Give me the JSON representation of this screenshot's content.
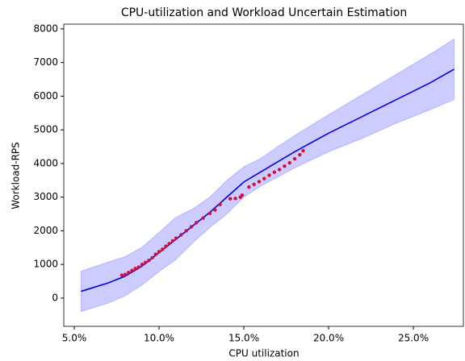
{
  "chart_data": {
    "type": "scatter",
    "title": "CPU-utilization and Workload Uncertain Estimation",
    "x_label": "CPU utilization",
    "y_label": "Workload-RPS",
    "xlim": [
      4.38,
      27.95
    ],
    "ylim": [
      -840,
      8140
    ],
    "xticks": [
      {
        "value": 5,
        "label": "5.0%"
      },
      {
        "value": 10,
        "label": "10.0%"
      },
      {
        "value": 15,
        "label": "15.0%"
      },
      {
        "value": 20,
        "label": "20.0%"
      },
      {
        "value": 25,
        "label": "25.0%"
      }
    ],
    "yticks": [
      0,
      1000,
      2000,
      3000,
      4000,
      5000,
      6000,
      7000,
      8000
    ],
    "band": {
      "color": "#0000ff",
      "alpha": 0.2,
      "x": [
        5.4,
        7,
        8,
        9,
        10,
        11,
        12,
        13,
        14,
        15,
        16,
        17,
        18,
        20,
        22,
        24,
        26,
        27.4
      ],
      "upper": [
        800,
        1070,
        1230,
        1510,
        1950,
        2400,
        2650,
        3000,
        3500,
        3900,
        4150,
        4500,
        4830,
        5450,
        6050,
        6650,
        7250,
        7700
      ],
      "lower": [
        -400,
        -150,
        70,
        390,
        790,
        1150,
        1650,
        2100,
        2500,
        3000,
        3330,
        3600,
        3870,
        4350,
        4750,
        5200,
        5600,
        5900
      ]
    },
    "line": {
      "color": "#0000dd",
      "x": [
        5.4,
        7,
        8,
        9,
        10,
        11,
        12,
        13,
        14,
        15,
        16,
        17,
        18,
        20,
        22,
        24,
        26,
        27.4
      ],
      "values": [
        200,
        450,
        650,
        950,
        1350,
        1750,
        2150,
        2550,
        3000,
        3450,
        3750,
        4050,
        4350,
        4900,
        5400,
        5900,
        6400,
        6800
      ]
    },
    "points": {
      "color": "#d0103a",
      "x": [
        7.8,
        8.0,
        8.2,
        8.4,
        8.6,
        8.8,
        9.0,
        9.2,
        9.4,
        9.6,
        9.8,
        10.0,
        10.2,
        10.4,
        10.6,
        10.8,
        11.0,
        11.3,
        11.6,
        11.9,
        12.2,
        12.6,
        13.0,
        13.3,
        13.6,
        14.2,
        14.5,
        14.8,
        14.9,
        15.3,
        15.6,
        15.9,
        16.2,
        16.5,
        16.8,
        17.1,
        17.4,
        17.7,
        18.0,
        18.3,
        18.5
      ],
      "values": [
        680,
        700,
        760,
        820,
        880,
        920,
        1000,
        1060,
        1120,
        1200,
        1300,
        1380,
        1450,
        1540,
        1620,
        1700,
        1780,
        1880,
        2000,
        2120,
        2240,
        2380,
        2520,
        2620,
        2780,
        2950,
        2960,
        3000,
        3060,
        3300,
        3380,
        3460,
        3550,
        3650,
        3740,
        3820,
        3920,
        4020,
        4140,
        4260,
        4380
      ]
    }
  }
}
